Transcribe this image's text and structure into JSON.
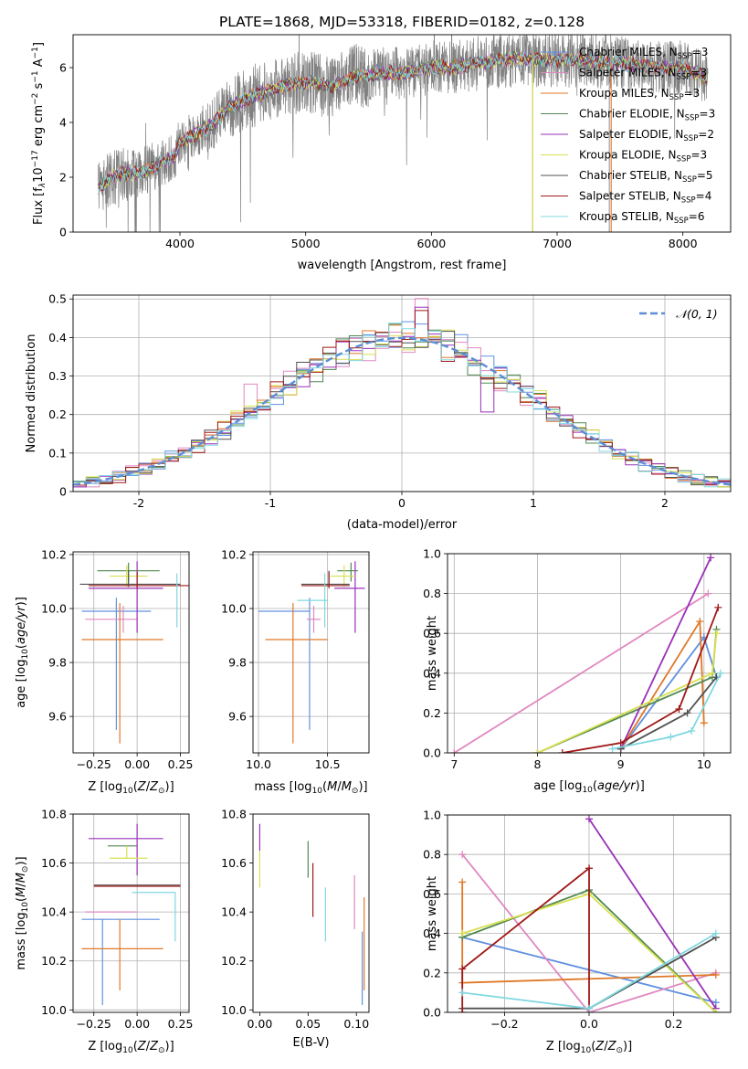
{
  "figure": {
    "title": "PLATE=1868, MJD=53318, FIBERID=0182, z=0.128"
  },
  "colors": {
    "C0": "#1f77b4",
    "C1": "#e07828",
    "C2": "#2ca02c",
    "C3": "#cc2a2a",
    "cms": "#6090e0",
    "sms": "#e088c0",
    "kms": "#e07828",
    "cel": "#508850",
    "sel": "#9a30b8",
    "kel": "#d8e050",
    "cst": "#505050",
    "sst": "#a01818",
    "kst": "#80d8e0",
    "data_spec": "#808080",
    "gaussian": "#5b8ed6",
    "grid": "#b0b0b0"
  },
  "models": [
    {
      "name": "Chabrier MILES",
      "n": "3",
      "color": "#6090e0"
    },
    {
      "name": "Salpeter MILES",
      "n": "3",
      "color": "#e088c0"
    },
    {
      "name": "Kroupa MILES",
      "n": "3",
      "color": "#e07828"
    },
    {
      "name": "Chabrier ELODIE",
      "n": "3",
      "color": "#508850"
    },
    {
      "name": "Salpeter ELODIE",
      "n": "2",
      "color": "#9a30b8"
    },
    {
      "name": "Kroupa ELODIE",
      "n": "3",
      "color": "#d8e050"
    },
    {
      "name": "Chabrier STELIB",
      "n": "5",
      "color": "#505050"
    },
    {
      "name": "Salpeter STELIB",
      "n": "4",
      "color": "#a01818"
    },
    {
      "name": "Kroupa STELIB",
      "n": "6",
      "color": "#80d8e0"
    }
  ],
  "chart_data": [
    {
      "id": "spectrum",
      "type": "line",
      "xlabel": "wavelength [Angstrom, rest frame]",
      "ylabel": "Flux [f_λ10^-17 erg cm^-2 s^-1 A^-1]",
      "xlim": [
        3150,
        8380
      ],
      "ylim": [
        0,
        7.2
      ],
      "xticks": [
        4000,
        5000,
        6000,
        7000,
        8000
      ],
      "yticks": [
        0,
        2,
        4,
        6
      ],
      "grid": false,
      "legend": "top-right",
      "data_xrange": [
        3350,
        8200
      ],
      "model_anchor_x": [
        3350,
        3450,
        3550,
        3700,
        3850,
        3950,
        4000,
        4100,
        4250,
        4400,
        4600,
        4800,
        5000,
        5200,
        5400,
        5600,
        5800,
        6000,
        6200,
        6400,
        6600,
        6800,
        7000,
        7200,
        7400,
        7600,
        7800,
        8000,
        8200
      ],
      "model_anchor_y": [
        1.6,
        2.0,
        2.1,
        2.2,
        2.5,
        2.7,
        3.3,
        3.5,
        3.9,
        4.6,
        5.0,
        5.3,
        5.5,
        5.3,
        5.7,
        5.8,
        5.8,
        6.0,
        6.0,
        6.2,
        6.3,
        6.3,
        6.3,
        6.3,
        6.2,
        6.1,
        6.0,
        6.0,
        5.6
      ]
    },
    {
      "id": "residuals",
      "type": "histogram",
      "xlabel": "(data-model)/error",
      "ylabel": "Normed distribution",
      "xlim": [
        -2.5,
        2.5
      ],
      "ylim": [
        0,
        0.51
      ],
      "xticks": [
        -2,
        -1,
        0,
        1,
        2
      ],
      "yticks": [
        0.0,
        0.1,
        0.2,
        0.3,
        0.4,
        0.5
      ],
      "grid": true,
      "legend": "top-right",
      "legend_label": "𝒩(0, 1)",
      "bin_width": 0.1,
      "bin_start": -2.5,
      "gaussian": {
        "mean": 0,
        "sigma": 1
      }
    },
    {
      "id": "age_vs_Z",
      "type": "errorbar",
      "xlabel": "Z [log10(Z/Z⊙)]",
      "ylabel": "age [log10(age/yr)]",
      "xlim": [
        -0.37,
        0.3
      ],
      "ylim": [
        9.465,
        10.21
      ],
      "xticks": [
        -0.25,
        0.0,
        0.25
      ],
      "xticklabels": [
        "−0.25",
        "0.00",
        "0.25"
      ],
      "yticks": [
        9.6,
        9.8,
        10.0,
        10.2
      ],
      "yticklabels": [
        "9.6",
        "9.8",
        "10.0",
        "10.2"
      ],
      "grid": true,
      "points": [
        {
          "model": 0,
          "x": -0.12,
          "xerr": [
            0.2,
            0.2
          ],
          "y": 9.99,
          "yerr": [
            0.44,
            0.05
          ]
        },
        {
          "model": 1,
          "x": -0.08,
          "xerr": [
            0.22,
            0.08
          ],
          "y": 9.96,
          "yerr": [
            0.05,
            0.05
          ]
        },
        {
          "model": 2,
          "x": -0.1,
          "xerr": [
            0.22,
            0.25
          ],
          "y": 9.885,
          "yerr": [
            0.385,
            0.135
          ]
        },
        {
          "model": 3,
          "x": -0.05,
          "xerr": [
            0.18,
            0.18
          ],
          "y": 10.14,
          "yerr": [
            0.04,
            0.03
          ]
        },
        {
          "model": 4,
          "x": 0.0,
          "xerr": [
            0.28,
            0.15
          ],
          "y": 10.075,
          "yerr": [
            0.165,
            0.1
          ]
        },
        {
          "model": 5,
          "x": -0.06,
          "xerr": [
            0.1,
            0.12
          ],
          "y": 10.12,
          "yerr": [
            0.04,
            0.04
          ]
        },
        {
          "model": 6,
          "x": -0.05,
          "xerr": [
            0.28,
            0.3
          ],
          "y": 10.09,
          "yerr": [
            0.01,
            0.05
          ]
        },
        {
          "model": 7,
          "x": 0.0,
          "xerr": [
            0.28,
            0.3
          ],
          "y": 10.085,
          "yerr": [
            0.01,
            0.05
          ]
        },
        {
          "model": 8,
          "x": 0.23,
          "xerr": [
            0.0,
            0.0
          ],
          "y": 10.03,
          "yerr": [
            0.1,
            0.1
          ]
        }
      ]
    },
    {
      "id": "age_vs_mass",
      "type": "errorbar",
      "xlabel": "mass [log10(M/M⊙)]",
      "ylabel": "",
      "xlim": [
        9.96,
        10.8
      ],
      "ylim": [
        9.465,
        10.21
      ],
      "xticks": [
        10.0,
        10.5
      ],
      "xticklabels": [
        "10.0",
        "10.5"
      ],
      "yticks": [
        9.6,
        9.8,
        10.0,
        10.2
      ],
      "yticklabels": [
        "9.6",
        "9.8",
        "10.0",
        "10.2"
      ],
      "grid": true,
      "points": [
        {
          "model": 0,
          "x": 10.37,
          "xerr": [
            0.37,
            0.0
          ],
          "y": 9.99,
          "yerr": [
            0.44,
            0.05
          ]
        },
        {
          "model": 1,
          "x": 10.4,
          "xerr": [
            0.05,
            0.05
          ],
          "y": 9.96,
          "yerr": [
            0.05,
            0.05
          ]
        },
        {
          "model": 2,
          "x": 10.25,
          "xerr": [
            0.2,
            0.25
          ],
          "y": 9.885,
          "yerr": [
            0.385,
            0.135
          ]
        },
        {
          "model": 3,
          "x": 10.67,
          "xerr": [
            0.1,
            0.05
          ],
          "y": 10.14,
          "yerr": [
            0.04,
            0.03
          ]
        },
        {
          "model": 4,
          "x": 10.7,
          "xerr": [
            0.15,
            0.07
          ],
          "y": 10.075,
          "yerr": [
            0.165,
            0.1
          ]
        },
        {
          "model": 5,
          "x": 10.62,
          "xerr": [
            0.1,
            0.08
          ],
          "y": 10.12,
          "yerr": [
            0.04,
            0.04
          ]
        },
        {
          "model": 6,
          "x": 10.51,
          "xerr": [
            0.2,
            0.15
          ],
          "y": 10.09,
          "yerr": [
            0.01,
            0.05
          ]
        },
        {
          "model": 7,
          "x": 10.51,
          "xerr": [
            0.2,
            0.15
          ],
          "y": 10.085,
          "yerr": [
            0.01,
            0.05
          ]
        },
        {
          "model": 8,
          "x": 10.48,
          "xerr": [
            0.2,
            0.02
          ],
          "y": 10.03,
          "yerr": [
            0.1,
            0.1
          ]
        }
      ]
    },
    {
      "id": "weight_vs_age",
      "type": "line",
      "xlabel": "age [log10(age/yr)]",
      "ylabel": "mass weight",
      "xlim": [
        6.92,
        10.32
      ],
      "ylim": [
        0,
        1.0
      ],
      "xticks": [
        7,
        8,
        9,
        10
      ],
      "xticklabels": [
        "7",
        "8",
        "9",
        "10"
      ],
      "yticks": [
        0.0,
        0.2,
        0.4,
        0.6,
        0.8,
        1.0
      ],
      "yticklabels": [
        "0.0",
        "0.2",
        "0.4",
        "0.6",
        "0.8",
        "1.0"
      ],
      "grid": true,
      "series": [
        {
          "model": 0,
          "x": [
            9.0,
            10.0,
            10.15
          ],
          "y": [
            0.02,
            0.58,
            0.38
          ]
        },
        {
          "model": 1,
          "x": [
            7.0,
            10.05
          ],
          "y": [
            0.0,
            0.8
          ]
        },
        {
          "model": 2,
          "x": [
            9.0,
            9.95,
            10.0
          ],
          "y": [
            0.02,
            0.66,
            0.15
          ]
        },
        {
          "model": 3,
          "x": [
            8.0,
            10.1,
            10.15
          ],
          "y": [
            0.0,
            0.38,
            0.62
          ]
        },
        {
          "model": 4,
          "x": [
            9.0,
            10.08
          ],
          "y": [
            0.02,
            0.98
          ]
        },
        {
          "model": 5,
          "x": [
            8.0,
            10.1,
            10.15
          ],
          "y": [
            0.0,
            0.4,
            0.6
          ]
        },
        {
          "model": 6,
          "x": [
            9.0,
            9.8,
            10.15
          ],
          "y": [
            0.02,
            0.2,
            0.38
          ]
        },
        {
          "model": 7,
          "x": [
            8.3,
            9.0,
            9.7,
            10.17
          ],
          "y": [
            0.0,
            0.05,
            0.22,
            0.73
          ]
        },
        {
          "model": 8,
          "x": [
            8.9,
            9.6,
            9.85,
            10.2
          ],
          "y": [
            0.02,
            0.08,
            0.11,
            0.4
          ]
        }
      ]
    },
    {
      "id": "mass_vs_Z",
      "type": "errorbar",
      "xlabel": "Z [log10(Z/Z⊙)]",
      "ylabel": "mass [log10(M/M⊙)]",
      "xlim": [
        -0.37,
        0.3
      ],
      "ylim": [
        9.99,
        10.8
      ],
      "xticks": [
        -0.25,
        0.0,
        0.25
      ],
      "xticklabels": [
        "−0.25",
        "0.00",
        "0.25"
      ],
      "yticks": [
        10.0,
        10.2,
        10.4,
        10.6,
        10.8
      ],
      "yticklabels": [
        "10.0",
        "10.2",
        "10.4",
        "10.6",
        "10.8"
      ],
      "grid": true,
      "points": [
        {
          "model": 0,
          "x": -0.2,
          "xerr": [
            0.12,
            0.33
          ],
          "y": 10.37,
          "yerr": [
            0.35,
            0.0
          ]
        },
        {
          "model": 1,
          "x": -0.08,
          "xerr": [
            0.22,
            0.08
          ],
          "y": 10.4,
          "yerr": [
            0.0,
            0.0
          ]
        },
        {
          "model": 2,
          "x": -0.1,
          "xerr": [
            0.22,
            0.25
          ],
          "y": 10.25,
          "yerr": [
            0.17,
            0.12
          ]
        },
        {
          "model": 3,
          "x": -0.05,
          "xerr": [
            0.12,
            0.05
          ],
          "y": 10.67,
          "yerr": [
            0.0,
            0.0
          ]
        },
        {
          "model": 4,
          "x": 0.0,
          "xerr": [
            0.28,
            0.15
          ],
          "y": 10.7,
          "yerr": [
            0.15,
            0.06
          ]
        },
        {
          "model": 5,
          "x": -0.06,
          "xerr": [
            0.1,
            0.12
          ],
          "y": 10.62,
          "yerr": [
            0.0,
            0.05
          ]
        },
        {
          "model": 6,
          "x": 0.0,
          "xerr": [
            0.25,
            0.25
          ],
          "y": 10.51,
          "yerr": [
            0.0,
            0.0
          ]
        },
        {
          "model": 7,
          "x": 0.0,
          "xerr": [
            0.25,
            0.25
          ],
          "y": 10.505,
          "yerr": [
            0.0,
            0.0
          ]
        },
        {
          "model": 8,
          "x": 0.22,
          "xerr": [
            0.25,
            0.0
          ],
          "y": 10.48,
          "yerr": [
            0.2,
            0.0
          ]
        }
      ]
    },
    {
      "id": "mass_vs_ebv",
      "type": "errorbar",
      "xlabel": "E(B-V)",
      "ylabel": "",
      "xlim": [
        -0.007,
        0.113
      ],
      "ylim": [
        9.99,
        10.8
      ],
      "xticks": [
        0.0,
        0.05,
        0.1
      ],
      "xticklabels": [
        "0.00",
        "0.05",
        "0.10"
      ],
      "yticks": [
        10.0,
        10.2,
        10.4,
        10.6,
        10.8
      ],
      "yticklabels": [
        "10.0",
        "10.2",
        "10.4",
        "10.6",
        "10.8"
      ],
      "grid": false,
      "points": [
        {
          "model": 4,
          "x": 0.0,
          "xerr": [
            0,
            0
          ],
          "y": 10.7,
          "yerr": [
            0.05,
            0.06
          ]
        },
        {
          "model": 5,
          "x": 0.0,
          "xerr": [
            0,
            0
          ],
          "y": 10.6,
          "yerr": [
            0.1,
            0.05
          ]
        },
        {
          "model": 3,
          "x": 0.05,
          "xerr": [
            0,
            0
          ],
          "y": 10.62,
          "yerr": [
            0.08,
            0.07
          ]
        },
        {
          "model": 7,
          "x": 0.055,
          "xerr": [
            0,
            0
          ],
          "y": 10.5,
          "yerr": [
            0.12,
            0.1
          ]
        },
        {
          "model": 8,
          "x": 0.068,
          "xerr": [
            0,
            0
          ],
          "y": 10.4,
          "yerr": [
            0.12,
            0.1
          ]
        },
        {
          "model": 1,
          "x": 0.098,
          "xerr": [
            0,
            0
          ],
          "y": 10.44,
          "yerr": [
            0.11,
            0.11
          ]
        },
        {
          "model": 0,
          "x": 0.106,
          "xerr": [
            0,
            0
          ],
          "y": 10.2,
          "yerr": [
            0.18,
            0.12
          ]
        },
        {
          "model": 2,
          "x": 0.108,
          "xerr": [
            0,
            0
          ],
          "y": 10.25,
          "yerr": [
            0.17,
            0.21
          ]
        }
      ]
    },
    {
      "id": "weight_vs_Z",
      "type": "line",
      "xlabel": "Z [log10(Z/Z⊙)]",
      "ylabel": "mass weight",
      "xlim": [
        -0.335,
        0.335
      ],
      "ylim": [
        0,
        1.0
      ],
      "xticks": [
        -0.2,
        0.0,
        0.2
      ],
      "xticklabels": [
        "−0.2",
        "0.0",
        "0.2"
      ],
      "yticks": [
        0.0,
        0.2,
        0.4,
        0.6,
        0.8,
        1.0
      ],
      "yticklabels": [
        "0.0",
        "0.2",
        "0.4",
        "0.6",
        "0.8",
        "1.0"
      ],
      "grid": true,
      "series": [
        {
          "model": 0,
          "x": [
            -0.3,
            0.3
          ],
          "y": [
            0.38,
            0.05
          ]
        },
        {
          "model": 1,
          "x": [
            -0.3,
            0.0,
            0.3
          ],
          "y": [
            0.8,
            0.0,
            0.2
          ]
        },
        {
          "model": 2,
          "x": [
            -0.3,
            -0.3,
            0.3
          ],
          "y": [
            0.66,
            0.15,
            0.19
          ]
        },
        {
          "model": 3,
          "x": [
            -0.3,
            0.0,
            0.3
          ],
          "y": [
            0.38,
            0.62,
            0.0
          ]
        },
        {
          "model": 4,
          "x": [
            0.0,
            0.3
          ],
          "y": [
            0.98,
            0.02
          ]
        },
        {
          "model": 5,
          "x": [
            -0.3,
            0.0,
            0.3
          ],
          "y": [
            0.4,
            0.6,
            0.0
          ]
        },
        {
          "model": 6,
          "x": [
            -0.3,
            0.0,
            0.3
          ],
          "y": [
            0.02,
            0.02,
            0.38
          ]
        },
        {
          "model": 7,
          "x": [
            -0.3,
            -0.3,
            0.0,
            0.0
          ],
          "y": [
            0.0,
            0.22,
            0.73,
            0.02
          ]
        },
        {
          "model": 8,
          "x": [
            -0.3,
            0.0,
            0.3
          ],
          "y": [
            0.1,
            0.02,
            0.4
          ]
        }
      ]
    }
  ]
}
